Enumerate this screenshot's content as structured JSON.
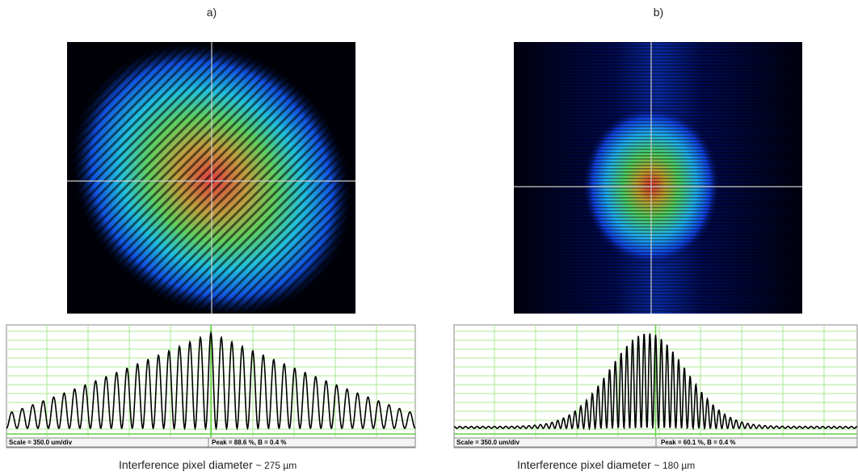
{
  "panels": [
    {
      "label": "a)",
      "scale": "Scale = 350.0 um/div",
      "peak": "Peak = 88.6 %, B = 0.4 %",
      "caption": "Interference pixel diameter",
      "size": "~ 275 µm"
    },
    {
      "label": "b)",
      "scale": "Scale = 350.0 um/div",
      "peak": "Peak = 60.1 %, B = 0.4 %",
      "caption": "Interference pixel diameter",
      "size": "~ 180 µm"
    }
  ]
}
